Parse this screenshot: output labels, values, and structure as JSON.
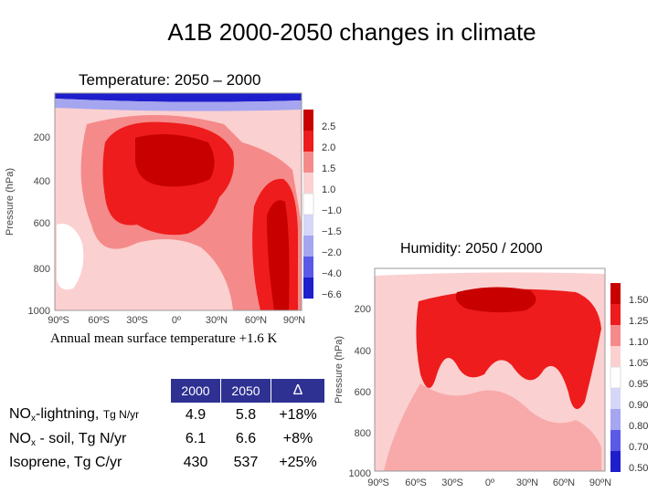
{
  "title": "A1B 2000-2050 changes in climate",
  "temperature_panel": {
    "title": "Temperature: 2050 – 2000",
    "ylabel": "Pressure (hPa)",
    "y_ticks": [
      "200",
      "400",
      "600",
      "800",
      "1000"
    ],
    "x_ticks": [
      "90ºS",
      "60ºS",
      "30ºS",
      "0º",
      "30ºN",
      "60ºN",
      "90ºN"
    ],
    "colorbar": [
      "2.5",
      "2.0",
      "1.5",
      "1.0",
      "−1.0",
      "−1.5",
      "−2.0",
      "−4.0",
      "−6.6"
    ],
    "colors": [
      "#c80000",
      "#ee1c1c",
      "#f58a8a",
      "#fbd0d0",
      "#ffffff",
      "#d6d6f8",
      "#a5a5f0",
      "#5a5ae6",
      "#1e1ecc"
    ]
  },
  "humidity_panel": {
    "title": "Humidity: 2050 / 2000",
    "ylabel": "Pressure (hPa)",
    "y_ticks": [
      "200",
      "400",
      "600",
      "800",
      "1000"
    ],
    "x_ticks": [
      "90ºS",
      "60ºS",
      "30ºS",
      "0º",
      "30ºN",
      "60ºN",
      "90ºN"
    ],
    "colorbar": [
      "1.50",
      "1.25",
      "1.10",
      "1.05",
      "0.95",
      "0.90",
      "0.80",
      "0.70",
      "0.50"
    ]
  },
  "annual_text": "Annual mean surface temperature +1.6 K",
  "table": {
    "headers": [
      "2000",
      "2050",
      "Δ"
    ],
    "rows": [
      {
        "label_main": "NO",
        "label_sub": "x",
        "label_rest": "-lightning, ",
        "label_unit": "Tg N/yr",
        "v2000": "4.9",
        "v2050": "5.8",
        "delta": "+18%"
      },
      {
        "label_main": "NO",
        "label_sub": "x",
        "label_rest": " - soil, Tg N/yr",
        "label_unit": "",
        "v2000": "6.1",
        "v2050": "6.6",
        "delta": "+8%"
      },
      {
        "label_main": "Isoprene, Tg C/yr",
        "label_sub": "",
        "label_rest": "",
        "label_unit": "",
        "v2000": "430",
        "v2050": "537",
        "delta": "+25%"
      }
    ]
  }
}
